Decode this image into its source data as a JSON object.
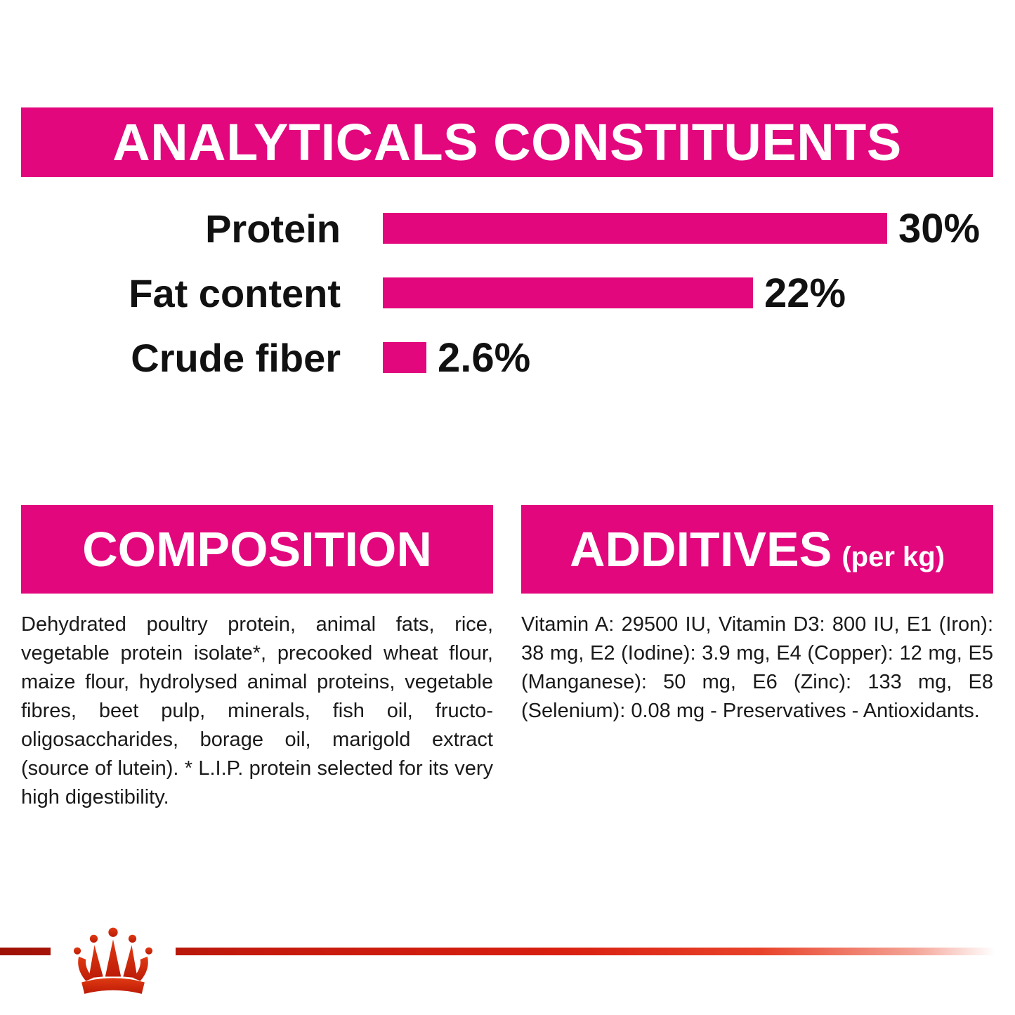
{
  "colors": {
    "pink": "#E2077D",
    "red": "#D21E0C",
    "text": "#1A1A1A"
  },
  "analyticals_banner": {
    "title": "ANALYTICALS CONSTITUENTS"
  },
  "chart_data": {
    "type": "bar",
    "orientation": "horizontal",
    "title": "ANALYTICALS CONSTITUENTS",
    "categories": [
      "Protein",
      "Fat content",
      "Crude fiber"
    ],
    "values": [
      30,
      22,
      2.6
    ],
    "value_labels": [
      "30%",
      "22%",
      "2.6%"
    ],
    "unit": "%",
    "xlim": [
      0,
      30
    ],
    "bar_color": "#E2077D",
    "grid": false,
    "legend": false
  },
  "composition": {
    "title": "COMPOSITION",
    "body": "Dehydrated poultry protein, animal fats, rice, vegetable protein isolate*, precooked wheat flour, maize flour, hydrolysed animal proteins, vegetable fibres, beet pulp, minerals, fish oil, fructo-oligosaccharides, borage oil, marigold extract (source of lutein). * L.I.P. protein selected for its very high digestibility."
  },
  "additives": {
    "title": "ADDITIVES",
    "per_kg_label": "(per kg)",
    "body": "Vitamin A: 29500 IU, Vitamin D3: 800 IU, E1 (Iron): 38 mg, E2 (Iodine): 3.9 mg, E4 (Copper): 12 mg, E5 (Manganese): 50 mg, E6 (Zinc): 133 mg, E8 (Selenium): 0.08 mg - Preservatives - Antioxidants.",
    "logo": "royal-canin-crown"
  }
}
